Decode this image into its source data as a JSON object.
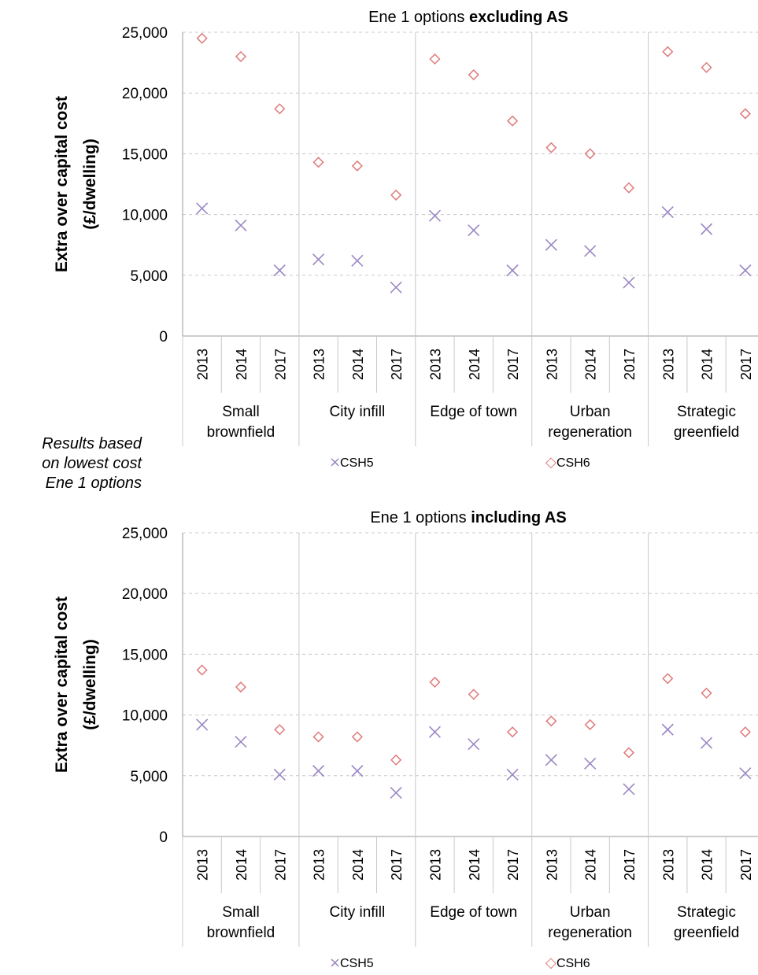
{
  "side_note": [
    "Results based",
    "on lowest cost",
    "Ene 1 options"
  ],
  "style": {
    "csh5_color": "#9B88C4",
    "csh6_color": "#E07A7A",
    "grid_color": "#c8c8c8",
    "axis_color": "#9a9a9a"
  },
  "chart_data": [
    {
      "type": "scatter",
      "title_prefix": "Ene 1 options ",
      "title_bold": "excluding AS",
      "ylabel_line1": "Extra over capital cost",
      "ylabel_line2": "(£/dwelling)",
      "ylim": [
        0,
        25000
      ],
      "yticks": [
        "0",
        "5,000",
        "10,000",
        "15,000",
        "20,000",
        "25,000"
      ],
      "years": [
        "2013",
        "2014",
        "2017"
      ],
      "groups": [
        {
          "label": [
            "Small",
            "brownfield"
          ]
        },
        {
          "label": [
            "City infill"
          ]
        },
        {
          "label": [
            "Edge of town"
          ]
        },
        {
          "label": [
            "Urban",
            "regeneration"
          ]
        },
        {
          "label": [
            "Strategic",
            "greenfield"
          ]
        }
      ],
      "series": [
        {
          "name": "CSH5",
          "marker": "×",
          "legend_marker": "×",
          "values": [
            10500,
            9100,
            5400,
            6300,
            6200,
            4000,
            9900,
            8700,
            5400,
            7500,
            7000,
            4400,
            10200,
            8800,
            5400
          ]
        },
        {
          "name": "CSH6",
          "marker": "◇",
          "legend_marker": "◇",
          "values": [
            24500,
            23000,
            18700,
            14300,
            14000,
            11600,
            22800,
            21500,
            17700,
            15500,
            15000,
            12200,
            23400,
            22100,
            18300
          ]
        }
      ],
      "grid": "horizontal dashed",
      "legend": "bottom"
    },
    {
      "type": "scatter",
      "title_prefix": "Ene 1 options ",
      "title_bold": "including AS",
      "ylabel_line1": "Extra over capital cost",
      "ylabel_line2": "(£/dwelling)",
      "ylim": [
        0,
        25000
      ],
      "yticks": [
        "0",
        "5,000",
        "10,000",
        "15,000",
        "20,000",
        "25,000"
      ],
      "years": [
        "2013",
        "2014",
        "2017"
      ],
      "groups": [
        {
          "label": [
            "Small",
            "brownfield"
          ]
        },
        {
          "label": [
            "City infill"
          ]
        },
        {
          "label": [
            "Edge of town"
          ]
        },
        {
          "label": [
            "Urban",
            "regeneration"
          ]
        },
        {
          "label": [
            "Strategic",
            "greenfield"
          ]
        }
      ],
      "series": [
        {
          "name": "CSH5",
          "marker": "×",
          "legend_marker": "×",
          "values": [
            9200,
            7800,
            5100,
            5400,
            5400,
            3600,
            8600,
            7600,
            5100,
            6300,
            6000,
            3900,
            8800,
            7700,
            5200
          ]
        },
        {
          "name": "CSH6",
          "marker": "◇",
          "legend_marker": "◇",
          "values": [
            13700,
            12300,
            8800,
            8200,
            8200,
            6300,
            12700,
            11700,
            8600,
            9500,
            9200,
            6900,
            13000,
            11800,
            8600
          ]
        }
      ],
      "grid": "horizontal dashed",
      "legend": "bottom"
    }
  ]
}
